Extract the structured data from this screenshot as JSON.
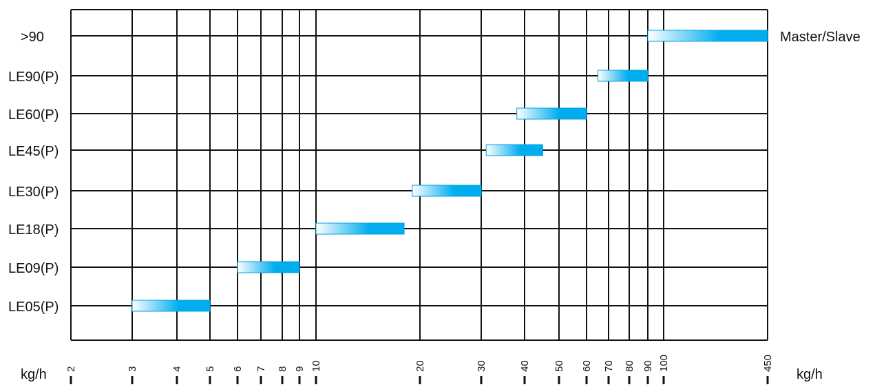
{
  "chart_data": {
    "type": "bar",
    "orientation": "horizontal-range",
    "x_scale": "log",
    "xlim": [
      2,
      450
    ],
    "x_ticks": [
      "2",
      "3",
      "4",
      "5",
      "6",
      "7",
      "8",
      "9",
      "10",
      "20",
      "30",
      "40",
      "50",
      "60",
      "70",
      "80",
      "90",
      "100",
      "450"
    ],
    "x_unit_left": "kg/h",
    "x_unit_right": "kg/h",
    "grid": true,
    "categories": [
      ">90",
      "LE90(P)",
      "LE60(P)",
      "LE45(P)",
      "LE30(P)",
      "LE18(P)",
      "LE09(P)",
      "LE05(P)"
    ],
    "ranges": [
      {
        "category": ">90",
        "start": 90,
        "end": 450,
        "annotation": "Master/Slave"
      },
      {
        "category": "LE90(P)",
        "start": 65,
        "end": 90
      },
      {
        "category": "LE60(P)",
        "start": 38,
        "end": 60
      },
      {
        "category": "LE45(P)",
        "start": 31,
        "end": 45
      },
      {
        "category": "LE30(P)",
        "start": 19,
        "end": 30
      },
      {
        "category": "LE18(P)",
        "start": 10,
        "end": 18
      },
      {
        "category": "LE09(P)",
        "start": 6,
        "end": 9
      },
      {
        "category": "LE05(P)",
        "start": 3,
        "end": 5
      }
    ],
    "colors": {
      "bar_light": "#ffffff",
      "bar_dark": "#00aeef",
      "bar_edge": "#00a2df",
      "grid": "#111111"
    }
  }
}
